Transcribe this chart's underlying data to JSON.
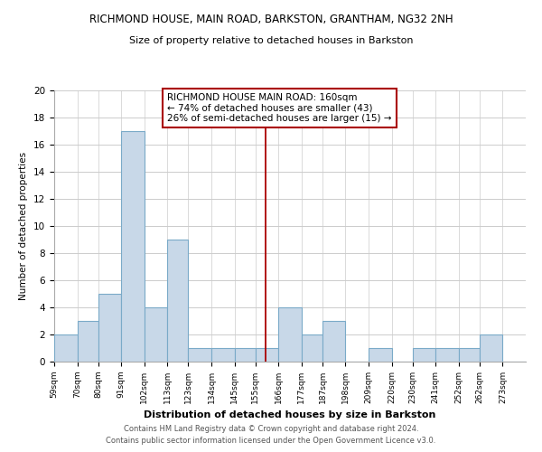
{
  "title": "RICHMOND HOUSE, MAIN ROAD, BARKSTON, GRANTHAM, NG32 2NH",
  "subtitle": "Size of property relative to detached houses in Barkston",
  "xlabel": "Distribution of detached houses by size in Barkston",
  "ylabel": "Number of detached properties",
  "bins": [
    "59sqm",
    "70sqm",
    "80sqm",
    "91sqm",
    "102sqm",
    "113sqm",
    "123sqm",
    "134sqm",
    "145sqm",
    "155sqm",
    "166sqm",
    "177sqm",
    "187sqm",
    "198sqm",
    "209sqm",
    "220sqm",
    "230sqm",
    "241sqm",
    "252sqm",
    "262sqm",
    "273sqm"
  ],
  "counts": [
    2,
    3,
    5,
    17,
    4,
    9,
    1,
    1,
    1,
    1,
    4,
    2,
    3,
    0,
    1,
    0,
    1,
    1,
    1,
    2,
    0
  ],
  "bar_color": "#c8d8e8",
  "bar_edge_color": "#7aaac8",
  "reference_line_x": 160,
  "reference_line_color": "#aa0000",
  "annotation_title": "RICHMOND HOUSE MAIN ROAD: 160sqm",
  "annotation_line2": "← 74% of detached houses are smaller (43)",
  "annotation_line3": "26% of semi-detached houses are larger (15) →",
  "annotation_box_color": "#ffffff",
  "annotation_box_edge": "#aa0000",
  "ylim": [
    0,
    20
  ],
  "footer1": "Contains HM Land Registry data © Crown copyright and database right 2024.",
  "footer2": "Contains public sector information licensed under the Open Government Licence v3.0.",
  "bin_edges": [
    59,
    70,
    80,
    91,
    102,
    113,
    123,
    134,
    145,
    155,
    166,
    177,
    187,
    198,
    209,
    220,
    230,
    241,
    252,
    262,
    273
  ]
}
